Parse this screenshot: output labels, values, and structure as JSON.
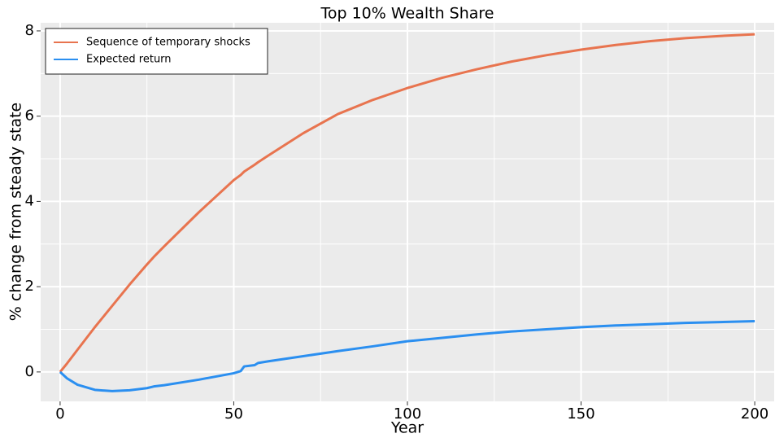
{
  "chart_data": {
    "type": "line",
    "title": "Top 10% Wealth Share",
    "xlabel": "Year",
    "ylabel": "% change from steady state",
    "x": [
      0,
      2,
      5,
      10,
      15,
      20,
      25,
      27,
      30,
      40,
      50,
      52,
      53,
      56,
      57,
      60,
      70,
      80,
      90,
      100,
      110,
      120,
      130,
      140,
      150,
      160,
      170,
      180,
      190,
      200
    ],
    "series": [
      {
        "name": "Sequence of temporary shocks",
        "color": "#e8744f",
        "values": [
          0,
          0.2,
          0.52,
          1.05,
          1.55,
          2.05,
          2.52,
          2.7,
          2.95,
          3.75,
          4.5,
          4.62,
          4.7,
          4.86,
          4.92,
          5.08,
          5.6,
          6.05,
          6.38,
          6.66,
          6.9,
          7.1,
          7.28,
          7.43,
          7.56,
          7.67,
          7.76,
          7.83,
          7.88,
          7.92
        ]
      },
      {
        "name": "Expected return",
        "color": "#2b8ff0",
        "values": [
          0,
          -0.15,
          -0.3,
          -0.42,
          -0.45,
          -0.43,
          -0.38,
          -0.34,
          -0.31,
          -0.18,
          -0.03,
          0.02,
          0.13,
          0.16,
          0.21,
          0.25,
          0.37,
          0.49,
          0.6,
          0.72,
          0.8,
          0.88,
          0.95,
          1.0,
          1.05,
          1.09,
          1.12,
          1.15,
          1.17,
          1.19
        ]
      }
    ],
    "xlim": [
      -5.6,
      205.6
    ],
    "ylim": [
      -0.69,
      8.19
    ],
    "xticks": [
      0,
      50,
      100,
      150,
      200
    ],
    "yticks": [
      0,
      2,
      4,
      6,
      8
    ],
    "xminor": [
      25,
      75,
      125,
      175
    ],
    "yminor": [
      1,
      3,
      5,
      7
    ],
    "grid": true,
    "legend": "upper left"
  }
}
